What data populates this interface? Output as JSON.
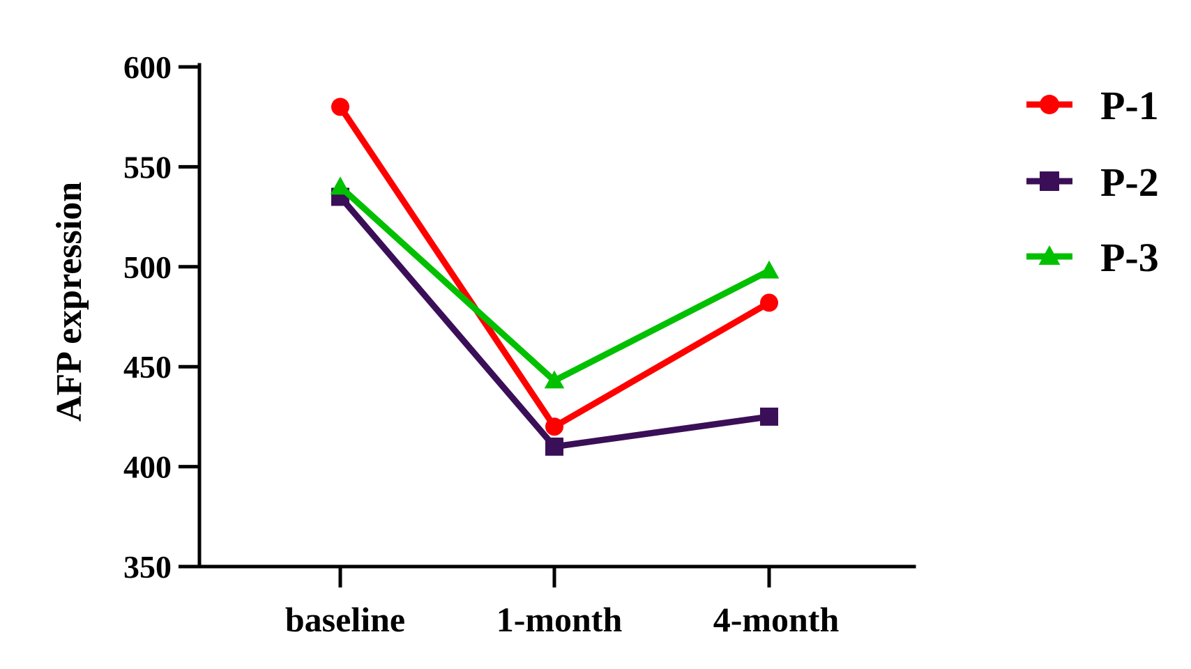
{
  "chart_data": {
    "type": "line",
    "title": "",
    "xlabel": "",
    "ylabel": "AFP expression",
    "ylim": [
      350,
      600
    ],
    "yticks": [
      350,
      400,
      450,
      500,
      550,
      600
    ],
    "categories": [
      "baseline",
      "1-month",
      "4-month"
    ],
    "grid": false,
    "legend_position": "right",
    "series": [
      {
        "name": "P-1",
        "color": "#ff0000",
        "marker": "circle",
        "values": [
          580,
          420,
          482
        ]
      },
      {
        "name": "P-2",
        "color": "#3a0f57",
        "marker": "square",
        "values": [
          535,
          410,
          425
        ]
      },
      {
        "name": "P-3",
        "color": "#00c000",
        "marker": "triangle",
        "values": [
          540,
          443,
          498
        ]
      }
    ]
  }
}
